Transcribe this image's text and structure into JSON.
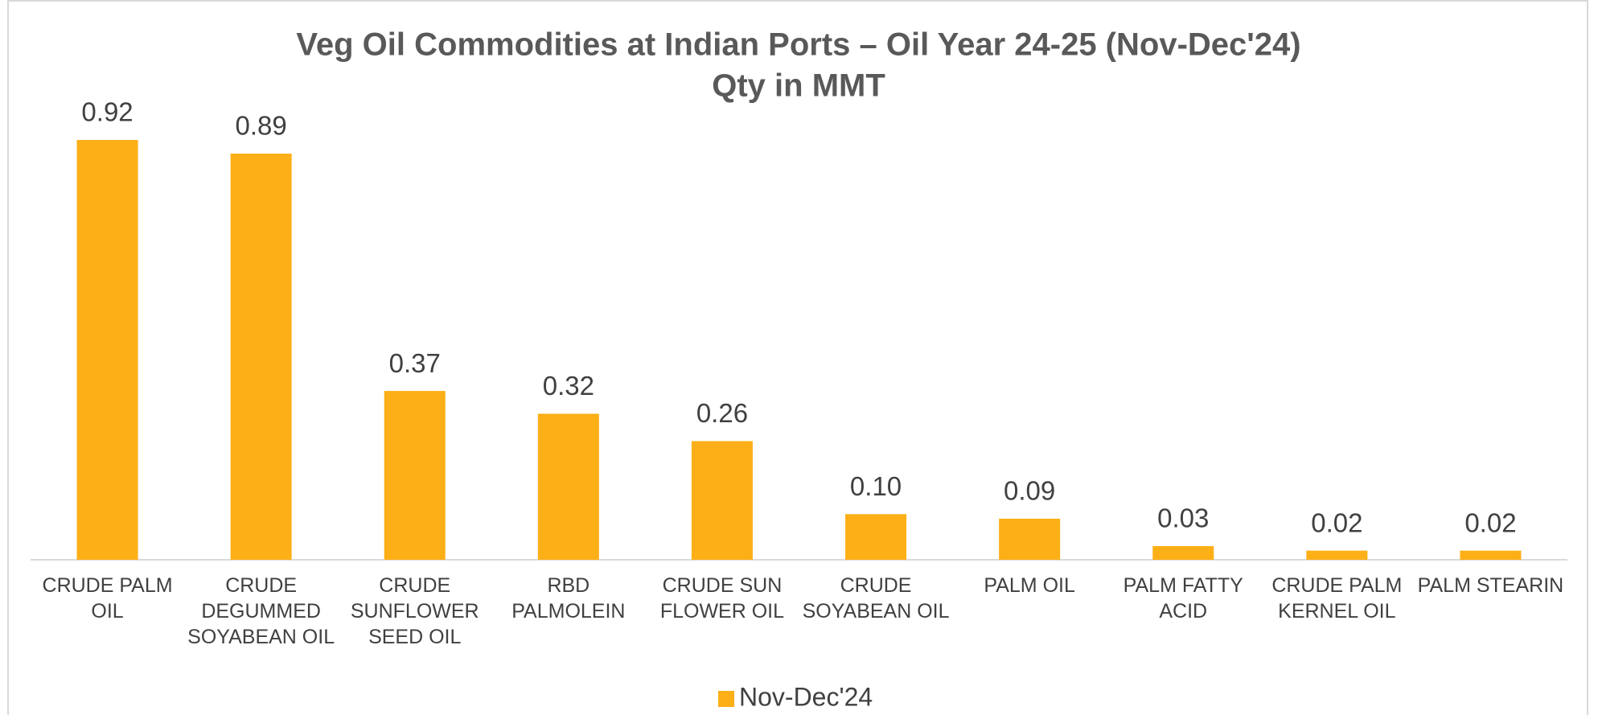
{
  "chart_data": {
    "type": "bar",
    "title": "Veg Oil Commodities at Indian Ports – Oil Year 24-25 (Nov-Dec'24)",
    "subtitle": "Qty in MMT",
    "categories": [
      "CRUDE PALM OIL",
      "CRUDE DEGUMMED SOYABEAN OIL",
      "CRUDE SUNFLOWER SEED OIL",
      "RBD PALMOLEIN",
      "CRUDE SUN FLOWER OIL",
      "CRUDE SOYABEAN OIL",
      "PALM OIL",
      "PALM FATTY ACID",
      "CRUDE PALM KERNEL OIL",
      "PALM STEARIN"
    ],
    "series": [
      {
        "name": "Nov-Dec'24",
        "color": "#fcaf17",
        "values": [
          0.92,
          0.89,
          0.37,
          0.32,
          0.26,
          0.1,
          0.09,
          0.03,
          0.02,
          0.02
        ],
        "value_labels": [
          "0.92",
          "0.89",
          "0.37",
          "0.32",
          "0.26",
          "0.10",
          "0.09",
          "0.03",
          "0.02",
          "0.02"
        ]
      }
    ],
    "legend": "bottom"
  }
}
